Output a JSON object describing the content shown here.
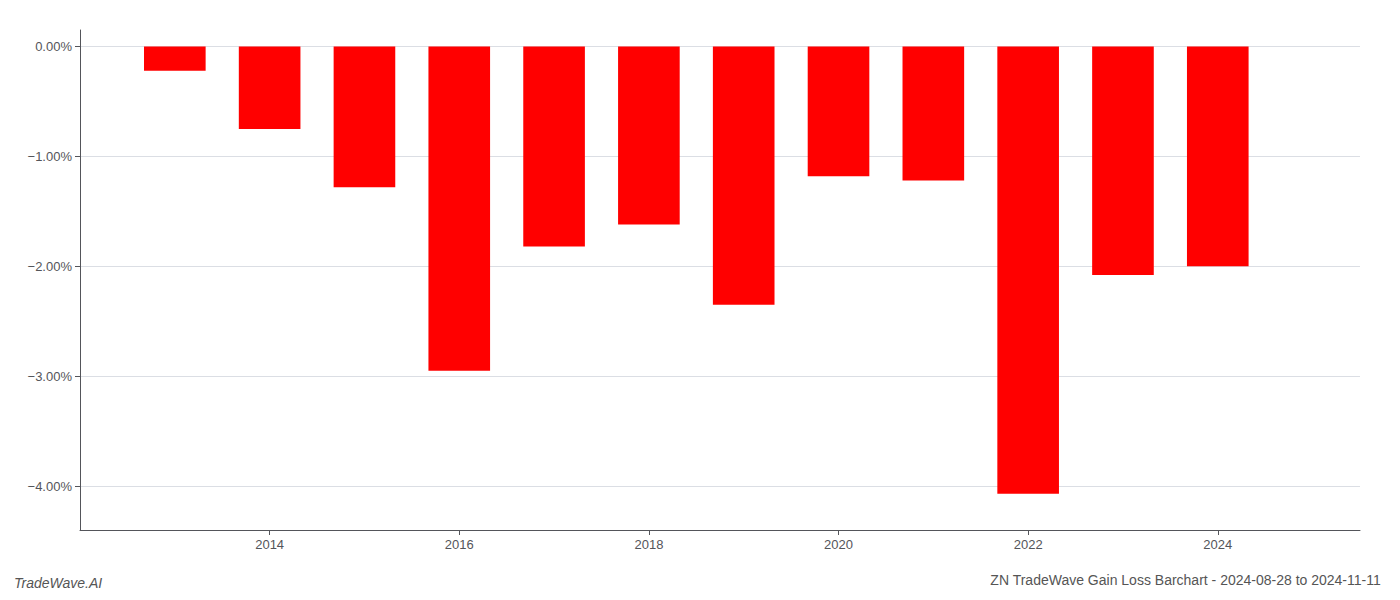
{
  "chart_data": {
    "type": "bar",
    "title": "ZN TradeWave Gain Loss Barchart - 2024-08-28 to 2024-11-11",
    "annotations": [
      "TradeWave.AI"
    ],
    "x": [
      2013,
      2014,
      2015,
      2016,
      2017,
      2018,
      2019,
      2020,
      2021,
      2022,
      2023,
      2024
    ],
    "values": [
      -0.22,
      -0.75,
      -1.28,
      -2.95,
      -1.82,
      -1.62,
      -2.35,
      -1.18,
      -1.22,
      -4.07,
      -2.08,
      -2.0
    ],
    "color": "#ff0000",
    "xlim": [
      2012.0,
      2025.5
    ],
    "xticks": [
      2014,
      2016,
      2018,
      2020,
      2022,
      2024
    ],
    "ylim": [
      -4.4,
      0.15
    ],
    "yticks": [
      {
        "value": 0.0,
        "label": "0.00%"
      },
      {
        "value": -1.0,
        "label": "−1.00%"
      },
      {
        "value": -2.0,
        "label": "−2.00%"
      },
      {
        "value": -3.0,
        "label": "−3.00%"
      },
      {
        "value": -4.0,
        "label": "−4.00%"
      }
    ],
    "grid": true
  }
}
